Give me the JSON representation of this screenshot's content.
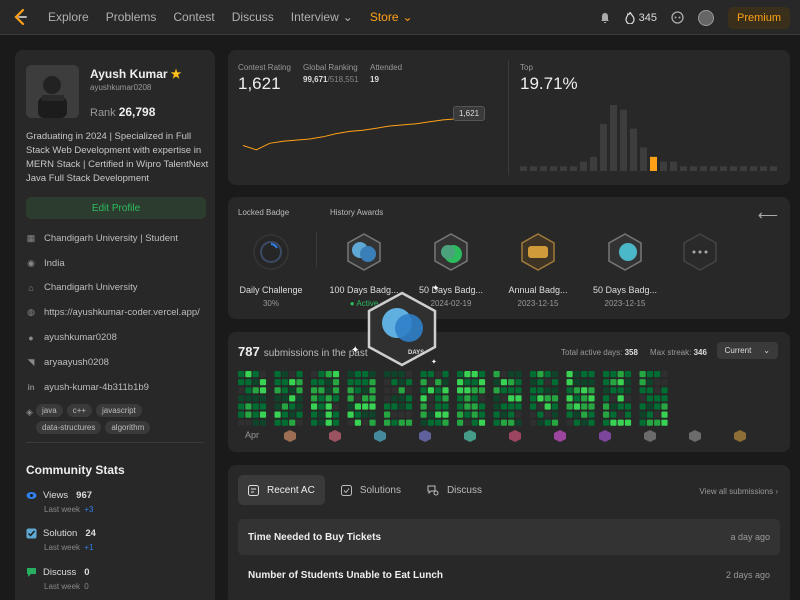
{
  "nav": {
    "items": [
      "Explore",
      "Problems",
      "Contest",
      "Discuss",
      "Interview",
      "Store"
    ],
    "streak": "345",
    "premium": "Premium"
  },
  "profile": {
    "name": "Ayush Kumar",
    "handle": "ayushkumar0208",
    "rank_label": "Rank",
    "rank": "26,798",
    "bio": "Graduating in 2024 | Specialized in Full Stack Web Development with expertise in MERN Stack | Certified in Wipro TalentNext Java Full Stack Development",
    "edit_label": "Edit Profile",
    "info": [
      {
        "icon": "building-icon",
        "text": "Chandigarh University | Student"
      },
      {
        "icon": "location-icon",
        "text": "India"
      },
      {
        "icon": "school-icon",
        "text": "Chandigarh University"
      },
      {
        "icon": "globe-icon",
        "text": "https://ayushkumar-coder.vercel.app/"
      },
      {
        "icon": "github-icon",
        "text": "ayushkumar0208"
      },
      {
        "icon": "twitter-icon",
        "text": "aryaayush0208"
      },
      {
        "icon": "linkedin-icon",
        "text": "ayush-kumar-4b311b1b9"
      }
    ],
    "tags": [
      "java",
      "c++",
      "javascript",
      "data-structures",
      "algorithm"
    ]
  },
  "community": {
    "title": "Community Stats",
    "stats": [
      {
        "label": "Views",
        "value": "967",
        "sub_label": "Last week",
        "delta": "+3",
        "color": "#2f80ed"
      },
      {
        "label": "Solution",
        "value": "24",
        "sub_label": "Last week",
        "delta": "+1",
        "color": "#5fa8d3"
      },
      {
        "label": "Discuss",
        "value": "0",
        "sub_label": "Last week",
        "delta": "0",
        "color": "#27ae60"
      }
    ]
  },
  "contest": {
    "rating_label": "Contest Rating",
    "rating": "1,621",
    "ranking_label": "Global Ranking",
    "ranking": "99,671",
    "ranking_total": "/518,551",
    "attended_label": "Attended",
    "attended": "19",
    "top_label": "Top",
    "top": "19.71%",
    "tooltip": "1,621",
    "history": [
      1490,
      1470,
      1500,
      1510,
      1515,
      1520,
      1530,
      1545,
      1555,
      1560,
      1570,
      1580,
      1585,
      1590,
      1600,
      1608,
      1613,
      1617,
      1621
    ],
    "histogram": [
      1,
      1,
      1,
      1,
      1,
      1,
      2,
      3,
      10,
      14,
      13,
      9,
      5,
      3,
      2,
      2,
      1,
      1,
      1,
      1,
      1,
      1,
      1,
      1,
      1,
      1
    ],
    "histogram_highlight": 13
  },
  "badges": {
    "locked_label": "Locked Badge",
    "history_label": "History Awards",
    "locked": {
      "name": "Daily Challenge",
      "progress": "30%"
    },
    "awards": [
      {
        "name": "100 Days Badg...",
        "date": "Active",
        "icon": "badge-100-days-icon"
      },
      {
        "name": "50 Days Badg...",
        "date": "2024-02-19",
        "icon": "badge-50-days-icon"
      },
      {
        "name": "Annual Badg...",
        "date": "2023-12-15",
        "icon": "badge-annual-icon"
      },
      {
        "name": "50 Days Badg...",
        "date": "2023-12-15",
        "icon": "badge-50-days-icon"
      }
    ],
    "overlay_text": "DAYS"
  },
  "submissions": {
    "count": "787",
    "label": "submissions in the past",
    "active_days_label": "Total active days:",
    "active_days": "358",
    "max_streak_label": "Max streak:",
    "max_streak": "346",
    "current": "Current",
    "first_month": "Apr"
  },
  "recent": {
    "tabs": [
      "Recent AC",
      "Solutions",
      "Discuss"
    ],
    "view_all": "View all submissions",
    "items": [
      {
        "title": "Time Needed to Buy Tickets",
        "ago": "a day ago"
      },
      {
        "title": "Number of Students Unable to Eat Lunch",
        "ago": "2 days ago"
      }
    ]
  },
  "colors": {
    "accent": "#ffa116",
    "green": "#2cbb5d",
    "bg": "#1a1a1a",
    "card": "#282828"
  }
}
